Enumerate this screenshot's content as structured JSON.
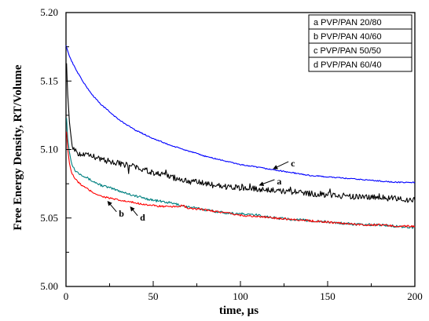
{
  "chart_data": {
    "type": "line",
    "title": "",
    "xlabel": "time, µs",
    "ylabel": "Free Energy Density, RT/Volume",
    "xlim": [
      0,
      200
    ],
    "ylim": [
      5.0,
      5.2
    ],
    "x_ticks": [
      0,
      50,
      100,
      150,
      200
    ],
    "x_tick_labels": [
      "0",
      "50",
      "100",
      "150",
      "200"
    ],
    "y_ticks": [
      5.0,
      5.05,
      5.1,
      5.15,
      5.2
    ],
    "y_tick_labels": [
      "5.00",
      "5.05",
      "5.10",
      "5.15",
      "5.20"
    ],
    "grid": false,
    "legend_position": "top-right",
    "series": [
      {
        "name": "a PVP/PAN 20/80",
        "label": "a",
        "color": "#000000",
        "x": [
          0.3,
          1,
          2,
          3,
          4,
          5,
          7,
          10,
          15,
          20,
          30,
          40,
          50,
          60,
          70,
          80,
          90,
          100,
          110,
          120,
          130,
          140,
          150,
          160,
          170,
          180,
          190,
          200
        ],
        "y": [
          5.163,
          5.14,
          5.12,
          5.108,
          5.102,
          5.099,
          5.097,
          5.096,
          5.095,
          5.093,
          5.09,
          5.087,
          5.083,
          5.08,
          5.077,
          5.075,
          5.073,
          5.072,
          5.071,
          5.07,
          5.069,
          5.068,
          5.067,
          5.066,
          5.065,
          5.065,
          5.064,
          5.063
        ],
        "annotation": {
          "text": "a",
          "x": 111,
          "y": 5.074
        }
      },
      {
        "name": "b PVP/PAN 40/60",
        "label": "b",
        "color": "#008080",
        "x": [
          0.3,
          1,
          2,
          3,
          5,
          7,
          10,
          15,
          20,
          30,
          40,
          50,
          60,
          70,
          80,
          90,
          100,
          110,
          120,
          130,
          140,
          150,
          160,
          170,
          180,
          190,
          200
        ],
        "y": [
          5.123,
          5.108,
          5.098,
          5.091,
          5.085,
          5.083,
          5.081,
          5.077,
          5.074,
          5.07,
          5.066,
          5.063,
          5.061,
          5.058,
          5.056,
          5.054,
          5.053,
          5.052,
          5.05,
          5.049,
          5.048,
          5.047,
          5.046,
          5.045,
          5.045,
          5.044,
          5.043
        ],
        "annotation": {
          "text": "b",
          "x": 24,
          "y": 5.062
        }
      },
      {
        "name": "c PVP/PAN 50/50",
        "label": "c",
        "color": "#0000ff",
        "x": [
          0,
          2,
          5,
          10,
          15,
          20,
          30,
          40,
          50,
          60,
          70,
          80,
          90,
          100,
          110,
          120,
          130,
          140,
          150,
          160,
          170,
          180,
          190,
          200
        ],
        "y": [
          5.176,
          5.168,
          5.16,
          5.149,
          5.14,
          5.133,
          5.122,
          5.114,
          5.108,
          5.103,
          5.099,
          5.095,
          5.092,
          5.089,
          5.087,
          5.085,
          5.083,
          5.081,
          5.08,
          5.079,
          5.078,
          5.077,
          5.076,
          5.076
        ],
        "annotation": {
          "text": "c",
          "x": 119,
          "y": 5.086
        }
      },
      {
        "name": "d PVP/PAN 60/40",
        "label": "d",
        "color": "#ff0000",
        "x": [
          0.3,
          1,
          2,
          3,
          5,
          7,
          10,
          15,
          20,
          30,
          40,
          50,
          60,
          67,
          70,
          80,
          90,
          100,
          110,
          120,
          130,
          140,
          150,
          160,
          170,
          180,
          190,
          200
        ],
        "y": [
          5.113,
          5.1,
          5.09,
          5.084,
          5.079,
          5.076,
          5.073,
          5.069,
          5.066,
          5.063,
          5.061,
          5.059,
          5.058,
          5.059,
          5.057,
          5.056,
          5.054,
          5.052,
          5.051,
          5.05,
          5.049,
          5.048,
          5.047,
          5.046,
          5.045,
          5.045,
          5.044,
          5.044
        ],
        "annotation": {
          "text": "d",
          "x": 37,
          "y": 5.058
        }
      }
    ]
  }
}
